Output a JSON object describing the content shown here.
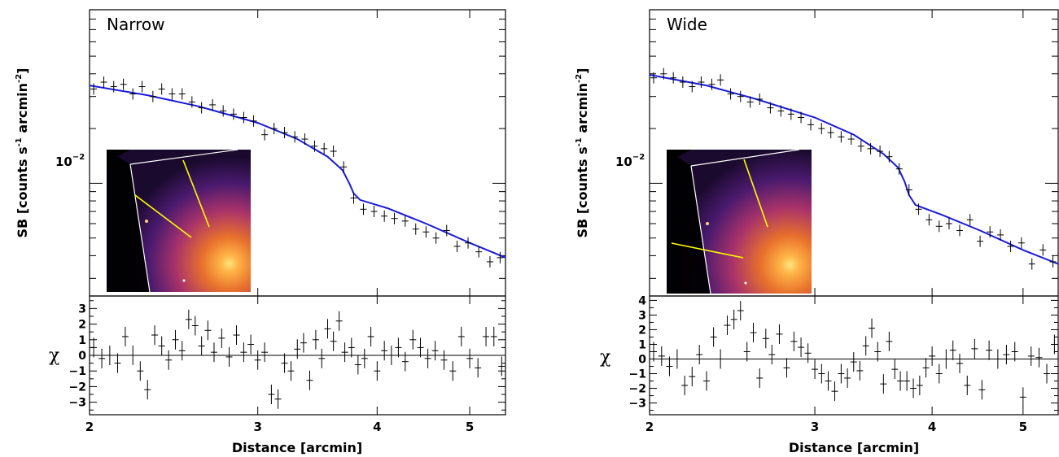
{
  "figure": {
    "y_axis_label_main": "SB [counts s",
    "y_axis_label_sup1": "-1",
    "y_axis_label_mid": " arcmin",
    "y_axis_label_sup2": "-2",
    "y_axis_label_end": "]",
    "x_axis_label": "Distance [arcmin]",
    "resid_axis_label": "χ",
    "main_tick_label_base": "10",
    "main_tick_label_exp": "−2"
  },
  "chart_data": [
    {
      "type": "scatter",
      "panel_title": "Narrow",
      "xscale": "log",
      "yscale": "log",
      "xlim": [
        2.0,
        5.45
      ],
      "ylim": [
        0.0024,
        0.09
      ],
      "xticks": [
        2,
        3,
        4,
        5
      ],
      "xticklabels": [
        "2",
        "3",
        "4",
        "5"
      ],
      "yticks_labeled": [
        0.01
      ],
      "model_color": "#1a1adc",
      "model": {
        "x": [
          2.0,
          2.3,
          2.6,
          3.0,
          3.3,
          3.55,
          3.68,
          3.74,
          3.78,
          3.84,
          4.1,
          4.5,
          5.0,
          5.45
        ],
        "y": [
          0.0345,
          0.0305,
          0.0265,
          0.0215,
          0.0175,
          0.014,
          0.0118,
          0.01,
          0.0088,
          0.0081,
          0.0073,
          0.006,
          0.0047,
          0.0039
        ]
      },
      "data": {
        "x": [
          2.02,
          2.07,
          2.12,
          2.17,
          2.22,
          2.27,
          2.33,
          2.38,
          2.44,
          2.5,
          2.56,
          2.62,
          2.69,
          2.76,
          2.83,
          2.9,
          2.97,
          3.05,
          3.12,
          3.2,
          3.28,
          3.36,
          3.44,
          3.52,
          3.6,
          3.69,
          3.78,
          3.87,
          3.97,
          4.07,
          4.17,
          4.28,
          4.39,
          4.5,
          4.61,
          4.73,
          4.85,
          4.98,
          5.11,
          5.25,
          5.38
        ],
        "y": [
          0.033,
          0.036,
          0.034,
          0.035,
          0.031,
          0.034,
          0.03,
          0.033,
          0.031,
          0.031,
          0.028,
          0.026,
          0.027,
          0.025,
          0.024,
          0.023,
          0.022,
          0.0185,
          0.02,
          0.019,
          0.018,
          0.0175,
          0.016,
          0.0155,
          0.015,
          0.0123,
          0.0083,
          0.0072,
          0.007,
          0.0066,
          0.0064,
          0.0062,
          0.0056,
          0.0054,
          0.005,
          0.0055,
          0.0045,
          0.0047,
          0.0042,
          0.0037,
          0.0039
        ]
      },
      "residuals": {
        "ylim": [
          -3.8,
          3.8
        ],
        "yticks": [
          -3,
          -2,
          -1,
          0,
          1,
          2,
          3
        ],
        "yticklabels": [
          "−3",
          "−2",
          "−1",
          "0",
          "1",
          "2",
          "3"
        ],
        "x": [
          2.02,
          2.06,
          2.1,
          2.14,
          2.18,
          2.22,
          2.26,
          2.3,
          2.34,
          2.38,
          2.42,
          2.46,
          2.5,
          2.54,
          2.58,
          2.62,
          2.66,
          2.7,
          2.75,
          2.8,
          2.85,
          2.9,
          2.95,
          3.0,
          3.05,
          3.1,
          3.15,
          3.2,
          3.25,
          3.3,
          3.35,
          3.4,
          3.45,
          3.5,
          3.55,
          3.6,
          3.65,
          3.7,
          3.76,
          3.82,
          3.88,
          3.94,
          4.0,
          4.07,
          4.14,
          4.21,
          4.28,
          4.36,
          4.44,
          4.52,
          4.6,
          4.7,
          4.8,
          4.9,
          5.0,
          5.1,
          5.2,
          5.3,
          5.4
        ],
        "y": [
          0.5,
          -0.2,
          0.0,
          -0.5,
          1.2,
          0.0,
          -1.0,
          -2.2,
          1.3,
          0.6,
          -0.3,
          1.0,
          0.3,
          2.3,
          1.9,
          0.6,
          1.6,
          0.2,
          1.1,
          -0.1,
          1.3,
          0.2,
          0.7,
          -0.3,
          0.2,
          -2.5,
          -2.8,
          -0.5,
          -1.0,
          0.4,
          0.8,
          -1.6,
          1.0,
          -0.2,
          1.7,
          0.9,
          2.2,
          0.2,
          0.5,
          -0.6,
          -0.2,
          1.2,
          -1.0,
          0.3,
          0.0,
          0.5,
          -0.4,
          1.0,
          0.5,
          -0.2,
          0.3,
          -0.3,
          -1.0,
          1.2,
          -0.2,
          -0.8,
          1.2,
          1.2,
          -0.7
        ]
      }
    },
    {
      "type": "scatter",
      "panel_title": "Wide",
      "xscale": "log",
      "yscale": "log",
      "xlim": [
        2.0,
        5.45
      ],
      "ylim": [
        0.0024,
        0.09
      ],
      "xticks": [
        2,
        3,
        4,
        5
      ],
      "xticklabels": [
        "2",
        "3",
        "4",
        "5"
      ],
      "yticks_labeled": [
        0.01
      ],
      "model_color": "#1a1adc",
      "model": {
        "x": [
          2.0,
          2.3,
          2.6,
          3.0,
          3.3,
          3.55,
          3.68,
          3.74,
          3.78,
          3.84,
          4.1,
          4.5,
          5.0,
          5.45
        ],
        "y": [
          0.0395,
          0.0345,
          0.029,
          0.023,
          0.0185,
          0.0145,
          0.0122,
          0.0102,
          0.0086,
          0.0076,
          0.0067,
          0.0055,
          0.0043,
          0.0036
        ]
      },
      "data": {
        "x": [
          2.02,
          2.07,
          2.12,
          2.17,
          2.22,
          2.27,
          2.33,
          2.38,
          2.44,
          2.5,
          2.56,
          2.62,
          2.69,
          2.76,
          2.83,
          2.9,
          2.97,
          3.05,
          3.12,
          3.2,
          3.28,
          3.36,
          3.44,
          3.52,
          3.6,
          3.69,
          3.78,
          3.87,
          3.97,
          4.07,
          4.17,
          4.28,
          4.39,
          4.5,
          4.61,
          4.73,
          4.85,
          4.98,
          5.11,
          5.25,
          5.38
        ],
        "y": [
          0.038,
          0.04,
          0.038,
          0.036,
          0.034,
          0.036,
          0.035,
          0.037,
          0.031,
          0.03,
          0.028,
          0.029,
          0.026,
          0.025,
          0.024,
          0.023,
          0.021,
          0.02,
          0.019,
          0.018,
          0.0175,
          0.016,
          0.0155,
          0.015,
          0.014,
          0.012,
          0.0092,
          0.0072,
          0.0063,
          0.0058,
          0.006,
          0.0055,
          0.0063,
          0.0048,
          0.0054,
          0.0052,
          0.0045,
          0.0047,
          0.0036,
          0.0043,
          0.0037
        ]
      },
      "residuals": {
        "ylim": [
          -3.8,
          4.3
        ],
        "yticks": [
          -3,
          -2,
          -1,
          0,
          1,
          2,
          3,
          4
        ],
        "yticklabels": [
          "−3",
          "−2",
          "−1",
          "0",
          "1",
          "2",
          "3",
          "4"
        ],
        "x": [
          2.02,
          2.06,
          2.1,
          2.14,
          2.18,
          2.22,
          2.26,
          2.3,
          2.34,
          2.38,
          2.42,
          2.46,
          2.5,
          2.54,
          2.58,
          2.62,
          2.66,
          2.7,
          2.75,
          2.8,
          2.85,
          2.9,
          2.95,
          3.0,
          3.05,
          3.1,
          3.15,
          3.2,
          3.25,
          3.3,
          3.35,
          3.4,
          3.45,
          3.5,
          3.55,
          3.6,
          3.65,
          3.7,
          3.76,
          3.82,
          3.88,
          3.94,
          4.0,
          4.07,
          4.14,
          4.21,
          4.28,
          4.36,
          4.44,
          4.52,
          4.6,
          4.7,
          4.8,
          4.9,
          5.0,
          5.1,
          5.2,
          5.3,
          5.4
        ],
        "y": [
          0.5,
          0.2,
          -0.5,
          0.0,
          -1.8,
          -1.2,
          0.3,
          -1.5,
          1.5,
          0.0,
          2.3,
          2.7,
          3.3,
          0.5,
          1.8,
          -1.3,
          1.4,
          0.3,
          1.7,
          -0.6,
          1.2,
          0.8,
          0.4,
          -0.7,
          -1.0,
          -1.5,
          -2.2,
          -1.0,
          -1.3,
          -0.2,
          -0.8,
          0.9,
          2.1,
          0.5,
          -1.7,
          1.2,
          -0.7,
          -1.5,
          -1.5,
          -2.0,
          -1.8,
          -0.6,
          0.2,
          -1.0,
          0.0,
          0.6,
          -0.3,
          -1.8,
          0.7,
          -2.1,
          0.6,
          0.0,
          0.3,
          0.5,
          -2.6,
          0.2,
          0.1,
          -1.0,
          1.0
        ]
      }
    }
  ]
}
